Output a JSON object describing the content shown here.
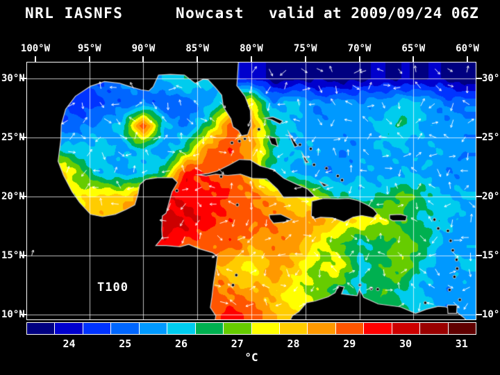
{
  "header": {
    "product": "NRL IASNFS",
    "mode": "Nowcast",
    "valid": "valid at 2009/09/24 06Z"
  },
  "annotation": "T100",
  "axes": {
    "lon": [
      {
        "label": "100°W",
        "lon": -100
      },
      {
        "label": "95°W",
        "lon": -95
      },
      {
        "label": "90°W",
        "lon": -90
      },
      {
        "label": "85°W",
        "lon": -85
      },
      {
        "label": "80°W",
        "lon": -80
      },
      {
        "label": "75°W",
        "lon": -75
      },
      {
        "label": "70°W",
        "lon": -70
      },
      {
        "label": "65°W",
        "lon": -65
      },
      {
        "label": "60°W",
        "lon": -60
      }
    ],
    "lat": [
      {
        "label": "30°N",
        "lat": 30
      },
      {
        "label": "25°N",
        "lat": 25
      },
      {
        "label": "20°N",
        "lat": 20
      },
      {
        "label": "15°N",
        "lat": 15
      },
      {
        "label": "10°N",
        "lat": 10
      }
    ]
  },
  "colorbar": {
    "unit": "°C",
    "min": 23.25,
    "max": 31.25,
    "step": 0.5,
    "colors": [
      "#000080",
      "#0000cd",
      "#0033ff",
      "#0066ff",
      "#0099ff",
      "#00ccee",
      "#00b050",
      "#66cc00",
      "#ffff00",
      "#ffcc00",
      "#ff9900",
      "#ff5500",
      "#ff0000",
      "#cc0000",
      "#990000",
      "#600000"
    ],
    "ticks": [
      {
        "label": "24",
        "value": 24
      },
      {
        "label": "25",
        "value": 25
      },
      {
        "label": "26",
        "value": 26
      },
      {
        "label": "27",
        "value": 27
      },
      {
        "label": "28",
        "value": 28
      },
      {
        "label": "29",
        "value": 29
      },
      {
        "label": "30",
        "value": 30
      },
      {
        "label": "31",
        "value": 31
      }
    ]
  },
  "chart_data": {
    "type": "heatmap",
    "title": "NRL IASNFS Nowcast valid at 2009/09/24 06Z",
    "field": "T100",
    "unit": "°C",
    "lon_range": [
      -100.77,
      -59.23
    ],
    "lat_range": [
      9.59,
      31.36
    ],
    "grid_lines_deg": 5,
    "vector_overlay": "white ocean-current arrows",
    "grid": {
      "lons": [
        -100,
        -98,
        -96,
        -94,
        -92,
        -90,
        -88,
        -86,
        -84,
        -82,
        -80,
        -78,
        -76,
        -74,
        -72,
        -70,
        -68,
        -66,
        -64,
        -62,
        -60
      ],
      "lats": [
        30,
        28,
        26,
        24,
        22,
        20,
        18,
        16,
        14,
        12,
        10
      ],
      "values": [
        [
          25.0,
          25.0,
          25.0,
          25.0,
          25.2,
          25.5,
          26.0,
          26.3,
          26.0,
          24.5,
          24.0,
          23.6,
          23.6,
          23.5,
          23.6,
          23.6,
          23.7,
          23.8,
          23.7,
          23.6,
          23.6
        ],
        [
          25.0,
          24.8,
          24.5,
          24.6,
          24.8,
          25.2,
          24.7,
          25.0,
          25.6,
          26.5,
          27.8,
          25.4,
          25.8,
          25.3,
          25.5,
          25.2,
          25.6,
          26.0,
          25.6,
          25.2,
          25.0
        ],
        [
          25.2,
          25.0,
          25.0,
          25.3,
          26.2,
          29.2,
          25.8,
          25.3,
          26.5,
          29.0,
          28.6,
          26.2,
          25.8,
          25.5,
          25.4,
          25.6,
          26.0,
          26.2,
          25.8,
          25.5,
          25.4
        ],
        [
          25.5,
          26.0,
          25.8,
          26.2,
          25.5,
          26.0,
          25.5,
          26.5,
          28.8,
          29.3,
          28.3,
          26.4,
          25.8,
          25.5,
          25.4,
          25.5,
          25.6,
          25.8,
          25.6,
          25.5,
          25.4
        ],
        [
          26.0,
          28.3,
          27.2,
          25.8,
          25.5,
          26.0,
          26.5,
          29.6,
          29.2,
          28.8,
          28.2,
          26.2,
          25.6,
          25.5,
          25.4,
          25.5,
          25.6,
          25.7,
          25.6,
          25.5,
          25.4
        ],
        [
          26.5,
          27.0,
          27.5,
          27.8,
          28.0,
          28.6,
          29.6,
          29.8,
          29.4,
          29.2,
          29.0,
          28.2,
          27.8,
          27.4,
          26.2,
          26.0,
          26.4,
          26.8,
          26.5,
          25.8,
          25.6
        ],
        [
          27.0,
          27.5,
          28.0,
          28.3,
          28.5,
          29.2,
          30.2,
          29.8,
          29.4,
          29.2,
          28.8,
          28.8,
          28.6,
          28.4,
          28.0,
          27.8,
          27.2,
          26.8,
          26.2,
          25.8,
          25.6
        ],
        [
          27.5,
          28.0,
          28.2,
          28.4,
          28.6,
          29.2,
          29.6,
          29.0,
          29.0,
          29.0,
          28.4,
          28.8,
          28.4,
          27.6,
          27.0,
          26.0,
          26.6,
          27.2,
          26.4,
          25.6,
          25.6
        ],
        [
          27.5,
          28.0,
          28.2,
          28.4,
          28.5,
          28.6,
          28.8,
          28.6,
          28.4,
          27.9,
          27.6,
          28.4,
          28.0,
          27.2,
          27.5,
          26.2,
          26.7,
          27.0,
          26.0,
          25.5,
          25.8
        ],
        [
          27.5,
          28.0,
          28.2,
          28.4,
          28.5,
          28.5,
          28.4,
          28.6,
          29.0,
          28.8,
          28.3,
          28.0,
          27.6,
          27.0,
          26.4,
          26.2,
          26.6,
          26.2,
          25.8,
          25.2,
          25.5
        ],
        [
          27.5,
          28.0,
          28.2,
          28.4,
          28.5,
          28.5,
          28.5,
          28.6,
          29.2,
          29.4,
          29.0,
          28.5,
          27.8,
          27.2,
          26.6,
          26.4,
          26.6,
          26.4,
          26.0,
          25.4,
          25.6
        ]
      ]
    },
    "land": {
      "mainland": [
        [
          -101,
          31.5
        ],
        [
          -81.2,
          31.5
        ],
        [
          -81.3,
          30.0
        ],
        [
          -81.35,
          29.4
        ],
        [
          -80.6,
          28.5
        ],
        [
          -80.1,
          27.3
        ],
        [
          -80.05,
          26.0
        ],
        [
          -80.35,
          25.25
        ],
        [
          -80.9,
          25.15
        ],
        [
          -81.2,
          25.6
        ],
        [
          -81.7,
          25.9
        ],
        [
          -81.9,
          26.6
        ],
        [
          -82.6,
          27.6
        ],
        [
          -82.75,
          28.6
        ],
        [
          -83.3,
          29.2
        ],
        [
          -84.0,
          29.9
        ],
        [
          -84.45,
          29.95
        ],
        [
          -85.2,
          29.6
        ],
        [
          -86.2,
          30.3
        ],
        [
          -87.5,
          30.35
        ],
        [
          -88.6,
          30.3
        ],
        [
          -89.1,
          29.3
        ],
        [
          -89.5,
          28.95
        ],
        [
          -90.2,
          29.05
        ],
        [
          -91.0,
          29.25
        ],
        [
          -92.2,
          29.6
        ],
        [
          -93.6,
          29.75
        ],
        [
          -94.9,
          29.35
        ],
        [
          -96.3,
          28.5
        ],
        [
          -97.2,
          27.4
        ],
        [
          -97.6,
          26.1
        ],
        [
          -97.65,
          24.8
        ],
        [
          -97.9,
          23.0
        ],
        [
          -97.4,
          21.8
        ],
        [
          -96.6,
          20.4
        ],
        [
          -95.9,
          19.5
        ],
        [
          -94.9,
          18.5
        ],
        [
          -93.8,
          18.3
        ],
        [
          -92.6,
          18.5
        ],
        [
          -91.6,
          18.9
        ],
        [
          -90.8,
          19.3
        ],
        [
          -90.5,
          20.2
        ],
        [
          -90.35,
          21.0
        ],
        [
          -89.8,
          21.45
        ],
        [
          -88.7,
          21.6
        ],
        [
          -87.3,
          21.6
        ],
        [
          -86.85,
          21.2
        ],
        [
          -87.35,
          20.4
        ],
        [
          -87.6,
          19.6
        ],
        [
          -87.9,
          18.6
        ],
        [
          -88.25,
          18.35
        ],
        [
          -88.3,
          17.2
        ],
        [
          -88.25,
          16.5
        ],
        [
          -88.85,
          15.85
        ],
        [
          -87.9,
          15.85
        ],
        [
          -86.6,
          15.75
        ],
        [
          -85.8,
          15.95
        ],
        [
          -84.9,
          15.6
        ],
        [
          -83.6,
          15.25
        ],
        [
          -83.15,
          14.95
        ],
        [
          -83.3,
          13.9
        ],
        [
          -83.5,
          12.7
        ],
        [
          -83.65,
          11.5
        ],
        [
          -83.8,
          10.6
        ],
        [
          -83.3,
          9.9
        ],
        [
          -83.5,
          8.8
        ],
        [
          -76.8,
          8.8
        ],
        [
          -76.2,
          9.9
        ],
        [
          -75.6,
          10.25
        ],
        [
          -74.9,
          11.0
        ],
        [
          -74.1,
          11.15
        ],
        [
          -72.9,
          11.5
        ],
        [
          -72.25,
          11.85
        ],
        [
          -71.95,
          12.45
        ],
        [
          -71.4,
          12.35
        ],
        [
          -71.65,
          11.75
        ],
        [
          -70.8,
          11.65
        ],
        [
          -70.2,
          11.6
        ],
        [
          -70.0,
          12.15
        ],
        [
          -69.6,
          11.45
        ],
        [
          -68.25,
          10.9
        ],
        [
          -66.2,
          10.65
        ],
        [
          -64.8,
          10.1
        ],
        [
          -63.8,
          10.45
        ],
        [
          -62.7,
          10.7
        ],
        [
          -62.0,
          10.65
        ],
        [
          -61.0,
          10.2
        ],
        [
          -60.4,
          9.8
        ],
        [
          -59.0,
          8.6
        ],
        [
          -101,
          8.6
        ]
      ],
      "islands": [
        [
          [
            -84.95,
            21.85
          ],
          [
            -84.0,
            21.95
          ],
          [
            -83.2,
            22.15
          ],
          [
            -82.1,
            22.65
          ],
          [
            -81.1,
            23.15
          ],
          [
            -80.1,
            23.1
          ],
          [
            -79.2,
            22.6
          ],
          [
            -78.0,
            22.3
          ],
          [
            -77.0,
            21.55
          ],
          [
            -75.7,
            21.0
          ],
          [
            -74.8,
            20.65
          ],
          [
            -74.15,
            20.05
          ],
          [
            -74.5,
            19.9
          ],
          [
            -75.7,
            19.95
          ],
          [
            -77.0,
            19.9
          ],
          [
            -77.6,
            20.65
          ],
          [
            -78.6,
            21.5
          ],
          [
            -79.9,
            21.55
          ],
          [
            -81.0,
            21.9
          ],
          [
            -82.2,
            21.8
          ],
          [
            -83.3,
            21.9
          ],
          [
            -84.2,
            21.75
          ]
        ],
        [
          [
            -74.45,
            18.35
          ],
          [
            -74.4,
            19.6
          ],
          [
            -73.3,
            19.85
          ],
          [
            -72.0,
            19.8
          ],
          [
            -71.0,
            19.85
          ],
          [
            -70.1,
            19.65
          ],
          [
            -69.2,
            19.25
          ],
          [
            -68.7,
            18.95
          ],
          [
            -68.35,
            18.55
          ],
          [
            -68.7,
            18.2
          ],
          [
            -69.8,
            18.4
          ],
          [
            -70.6,
            18.25
          ],
          [
            -71.4,
            17.85
          ],
          [
            -72.5,
            18.2
          ],
          [
            -73.6,
            18.25
          ],
          [
            -74.15,
            18.1
          ]
        ],
        [
          [
            -78.35,
            18.45
          ],
          [
            -77.3,
            18.5
          ],
          [
            -76.25,
            18.05
          ],
          [
            -76.85,
            17.85
          ],
          [
            -77.95,
            17.75
          ],
          [
            -78.3,
            18.15
          ]
        ],
        [
          [
            -67.2,
            18.45
          ],
          [
            -66.2,
            18.5
          ],
          [
            -65.6,
            18.35
          ],
          [
            -65.7,
            17.95
          ],
          [
            -66.9,
            17.95
          ],
          [
            -67.2,
            18.1
          ]
        ],
        [
          [
            -78.45,
            25.15
          ],
          [
            -77.75,
            24.95
          ],
          [
            -77.55,
            24.25
          ],
          [
            -78.15,
            24.45
          ]
        ],
        [
          [
            -78.8,
            26.65
          ],
          [
            -78.0,
            26.75
          ],
          [
            -77.1,
            26.4
          ],
          [
            -77.35,
            26.15
          ],
          [
            -78.1,
            26.5
          ]
        ],
        [
          [
            -76.55,
            25.45
          ],
          [
            -76.1,
            24.8
          ],
          [
            -75.7,
            24.3
          ],
          [
            -76.0,
            24.2
          ],
          [
            -76.35,
            24.9
          ]
        ],
        [
          [
            -75.3,
            23.65
          ],
          [
            -74.7,
            22.9
          ],
          [
            -75.0,
            22.85
          ]
        ],
        [
          [
            -73.65,
            21.25
          ],
          [
            -72.9,
            20.95
          ],
          [
            -73.3,
            20.85
          ]
        ],
        [
          [
            -61.85,
            10.8
          ],
          [
            -60.95,
            10.8
          ],
          [
            -61.0,
            10.1
          ],
          [
            -61.8,
            10.1
          ]
        ]
      ],
      "small_islands": [
        [
          -81.3,
          19.3
        ],
        [
          -82.8,
          21.7
        ],
        [
          -86.9,
          20.5
        ],
        [
          -81.8,
          24.55
        ],
        [
          -81.1,
          24.7
        ],
        [
          -80.6,
          24.9
        ],
        [
          -79.3,
          25.7
        ],
        [
          -75.5,
          24.4
        ],
        [
          -74.5,
          24.05
        ],
        [
          -74.2,
          22.7
        ],
        [
          -73.05,
          22.4
        ],
        [
          -72.0,
          21.75
        ],
        [
          -71.6,
          21.4
        ],
        [
          -63.05,
          18.05
        ],
        [
          -62.7,
          17.3
        ],
        [
          -61.8,
          17.1
        ],
        [
          -61.55,
          16.25
        ],
        [
          -61.35,
          15.45
        ],
        [
          -61.0,
          14.65
        ],
        [
          -60.95,
          13.9
        ],
        [
          -61.2,
          13.2
        ],
        [
          -61.65,
          12.1
        ],
        [
          -60.7,
          11.25
        ],
        [
          -69.95,
          12.5
        ],
        [
          -68.9,
          12.2
        ],
        [
          -68.3,
          12.15
        ],
        [
          -63.9,
          11.0
        ],
        [
          -81.7,
          12.5
        ],
        [
          -81.4,
          13.35
        ]
      ]
    }
  }
}
